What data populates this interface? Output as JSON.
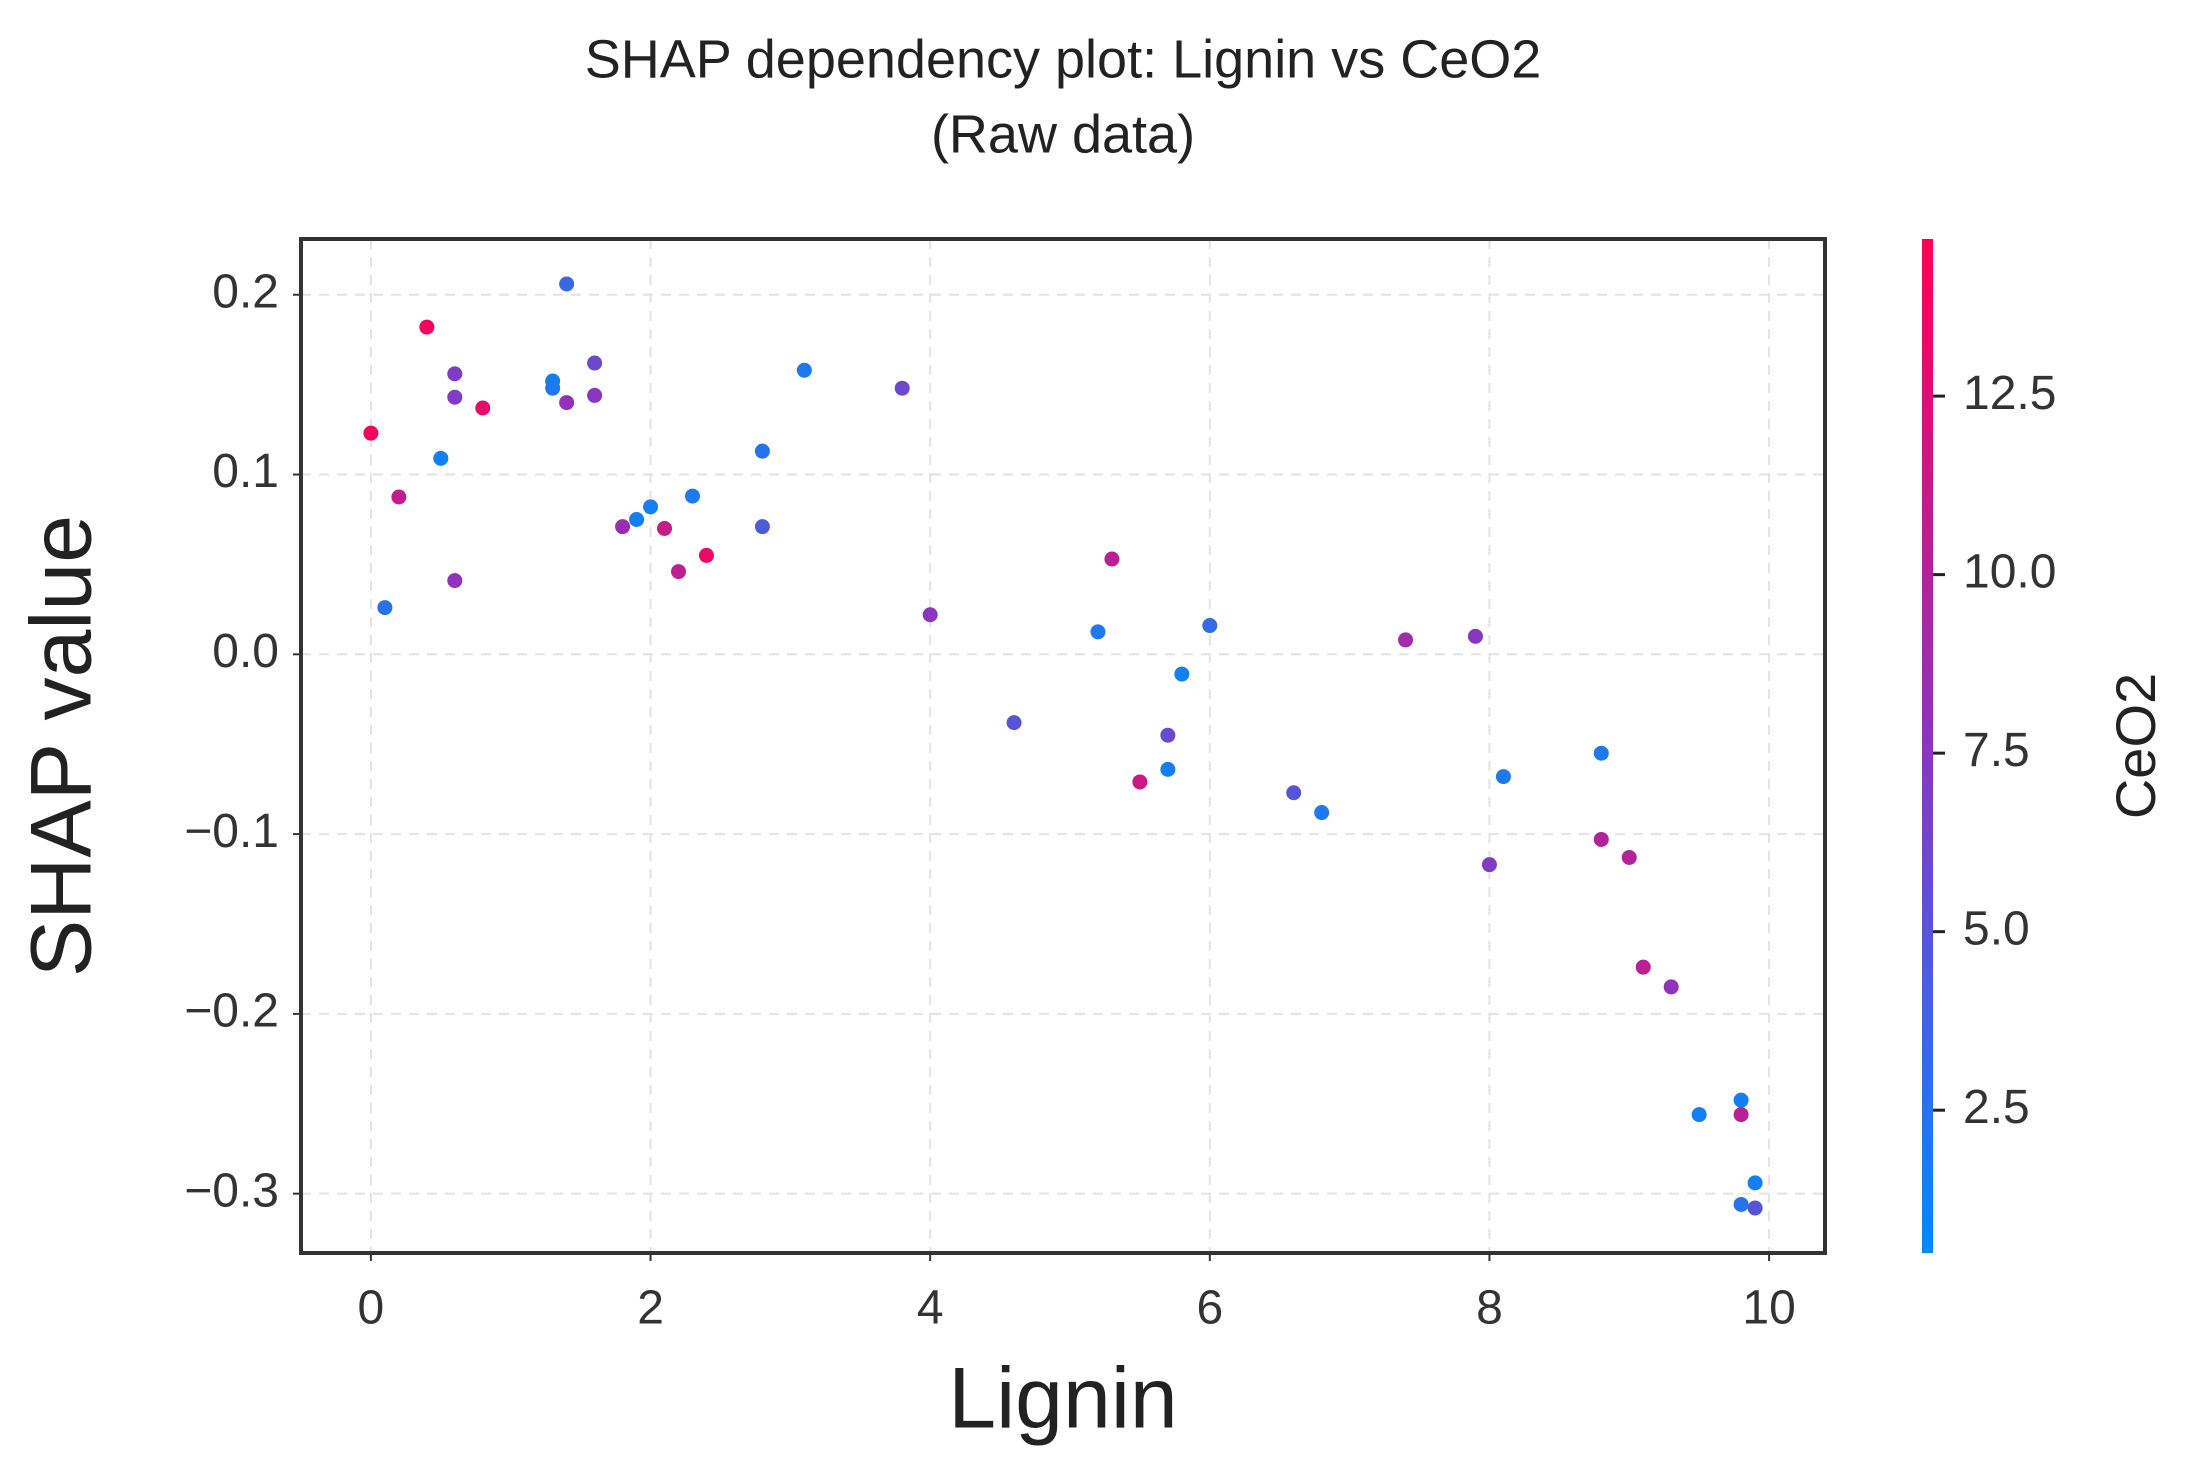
{
  "chart_data": {
    "type": "scatter",
    "title": "SHAP dependency plot: Lignin vs CeO2",
    "subtitle": "(Raw data)",
    "x_label": "Lignin",
    "y_label": "SHAP value",
    "color_label": "CeO2",
    "x": [
      0,
      0.1,
      0.2,
      0.4,
      0.5,
      0.6,
      0.6,
      0.6,
      0.8,
      1.3,
      1.3,
      1.4,
      1.4,
      1.6,
      1.6,
      1.8,
      1.9,
      2.0,
      2.1,
      2.2,
      2.3,
      2.4,
      2.8,
      2.8,
      3.1,
      3.8,
      4.0,
      4.6,
      5.2,
      5.3,
      5.5,
      5.7,
      5.7,
      5.8,
      6.0,
      6.6,
      6.8,
      7.4,
      7.9,
      8.0,
      8.1,
      8.8,
      8.8,
      9.0,
      9.1,
      9.3,
      9.5,
      9.8,
      9.8,
      9.8,
      9.9,
      9.9
    ],
    "values": [
      0.123,
      0.026,
      0.0875,
      0.182,
      0.109,
      0.156,
      0.143,
      0.041,
      0.137,
      0.152,
      0.148,
      0.206,
      0.14,
      0.162,
      0.144,
      0.071,
      0.075,
      0.082,
      0.07,
      0.046,
      0.088,
      0.055,
      0.113,
      0.071,
      0.158,
      0.148,
      0.022,
      -0.038,
      0.0125,
      0.053,
      -0.071,
      -0.045,
      -0.064,
      -0.011,
      0.016,
      -0.077,
      -0.088,
      0.008,
      0.01,
      -0.117,
      -0.068,
      -0.055,
      -0.103,
      -0.113,
      -0.174,
      -0.185,
      -0.256,
      -0.248,
      -0.256,
      -0.306,
      -0.294,
      -0.308
    ],
    "color_values": [
      14,
      2.5,
      11,
      14,
      1.5,
      7,
      7,
      8,
      13,
      1.5,
      2,
      3.5,
      8,
      6,
      7.5,
      8.5,
      1.5,
      1.5,
      11,
      10.5,
      2,
      13.5,
      2.5,
      4.5,
      2,
      6,
      7.5,
      5,
      2,
      10.5,
      11.5,
      6,
      1.5,
      1.5,
      3,
      5,
      2,
      9,
      7.5,
      7,
      2,
      2,
      10,
      10,
      10.5,
      8,
      1.5,
      1.5,
      10.5,
      2.5,
      1.5,
      5
    ],
    "colormap": [
      "#008bfb",
      "#8b35c0",
      "#ff0052"
    ],
    "xlim": [
      -0.5,
      10.4
    ],
    "xticks": [
      0,
      2,
      4,
      6,
      8,
      10
    ],
    "ylim": [
      -0.333,
      0.231
    ],
    "yticks": [
      0.2,
      0.1,
      {
        "value": 0,
        "label": "0.0"
      },
      {
        "value": -0.1,
        "label": "−0.1"
      },
      {
        "value": -0.2,
        "label": "−0.2"
      },
      {
        "value": -0.3,
        "label": "−0.3"
      }
    ],
    "clim": [
      0.5,
      14.7
    ],
    "cticks": [
      12.5,
      {
        "value": 10,
        "label": "10.0"
      },
      7.5,
      {
        "value": 5,
        "label": "5.0"
      },
      2.5
    ],
    "grid": true
  }
}
